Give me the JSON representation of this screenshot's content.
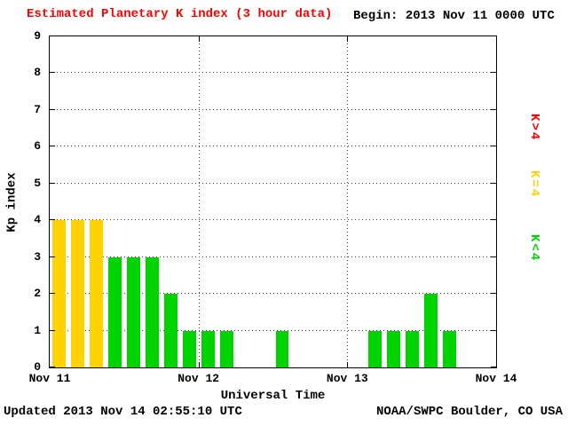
{
  "chart": {
    "title": "Estimated Planetary K index (3 hour data)",
    "title_color": "#ff0000",
    "begin_label": "Begin:",
    "begin_value": "2013 Nov 11 0000 UTC",
    "ylabel": "Kp index",
    "xlabel": "Universal Time",
    "updated": "Updated 2013 Nov 14 02:55:10 UTC",
    "credit": "NOAA/SWPC Boulder, CO USA"
  },
  "legend": [
    {
      "name": "legend-label-k-gt-4",
      "label": "K>4",
      "color": "#ff0000"
    },
    {
      "name": "legend-label-k-eq-4",
      "label": "K=4",
      "color": "#ffd300"
    },
    {
      "name": "legend-label-k-lt-4",
      "label": "K<4",
      "color": "#00d400"
    }
  ],
  "chart_data": {
    "type": "bar",
    "title": "Estimated Planetary K index (3 hour data)",
    "begin": "2013 Nov 11 0000 UTC",
    "hours_per_bar": 3,
    "xlabel": "Universal Time",
    "ylabel": "Kp index",
    "ylim": [
      0,
      9
    ],
    "y_ticks": [
      0,
      1,
      2,
      3,
      4,
      5,
      6,
      7,
      8,
      9
    ],
    "x_tick_labels": [
      "Nov 11",
      "Nov 12",
      "Nov 13",
      "Nov 14"
    ],
    "values": [
      4,
      4,
      4,
      3,
      3,
      3,
      2,
      1,
      1,
      1,
      0,
      0,
      1,
      0,
      0,
      0,
      0,
      1,
      1,
      1,
      2,
      1,
      0,
      0
    ],
    "bar_colors": {
      "gt4": "#ff0000",
      "eq4": "#ffd300",
      "lt4": "#00d400"
    },
    "grid": "dotted",
    "legend_position": "right"
  }
}
